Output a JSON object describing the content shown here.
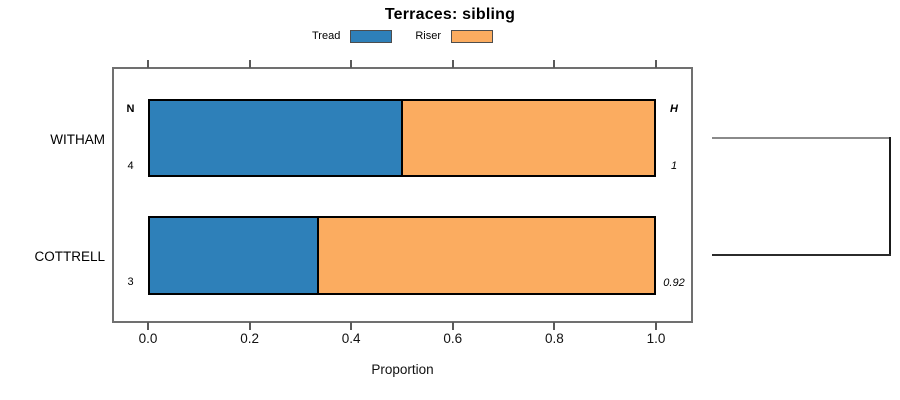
{
  "chart_data": {
    "type": "bar",
    "orientation": "horizontal",
    "stacked": true,
    "title": "Terraces: sibling",
    "xlabel": "Proportion",
    "ylabel": "",
    "xlim": [
      0,
      1
    ],
    "x_ticks": [
      0.0,
      0.2,
      0.4,
      0.6,
      0.8,
      1.0
    ],
    "x_tick_labels": [
      "0.0",
      "0.2",
      "0.4",
      "0.6",
      "0.8",
      "1.0"
    ],
    "categories": [
      "WITHAM",
      "COTTRELL"
    ],
    "series": [
      {
        "name": "Tread",
        "color": "#2E80B9",
        "values": [
          0.5,
          0.333
        ]
      },
      {
        "name": "Riser",
        "color": "#FBAC60",
        "values": [
          0.5,
          0.667
        ]
      }
    ],
    "annotations": {
      "left_header": "N",
      "right_header": "H",
      "n_values": [
        "4",
        "3"
      ],
      "h_values": [
        "1",
        "0.92"
      ]
    },
    "legend_position": "top",
    "grid": false,
    "dendrogram": {
      "connects": [
        "WITHAM",
        "COTTRELL"
      ],
      "top_branch_color": "#8A8A8A",
      "bottom_branch_color": "#2B2B2B"
    }
  }
}
